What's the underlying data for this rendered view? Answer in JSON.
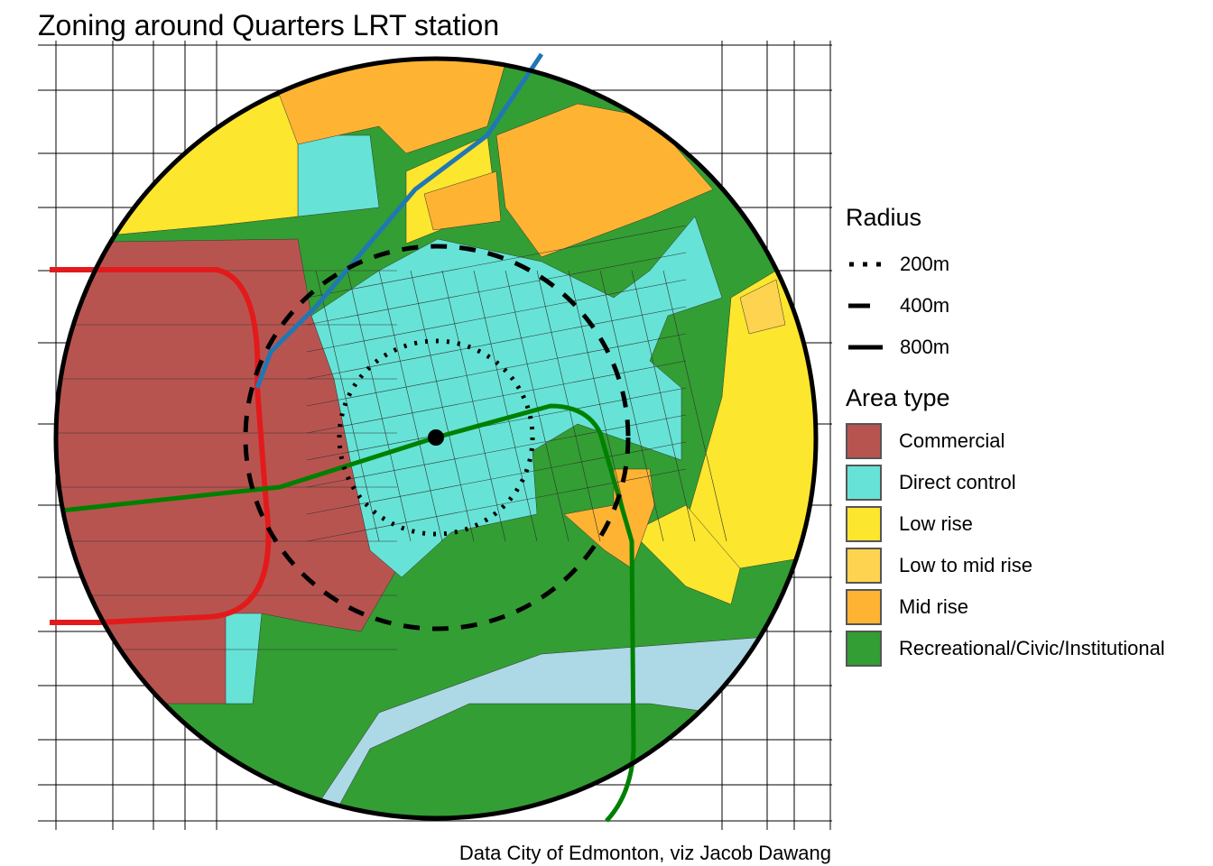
{
  "title": "Zoning around Quarters LRT station",
  "caption": "Data City of Edmonton, viz Jacob Dawang",
  "legend": {
    "radius_title": "Radius",
    "radius_items": [
      {
        "label": "200m",
        "style": "dotted"
      },
      {
        "label": "400m",
        "style": "dashed"
      },
      {
        "label": "800m",
        "style": "solid"
      }
    ],
    "area_title": "Area type",
    "area_items": [
      {
        "label": "Commercial",
        "color": "#b85450"
      },
      {
        "label": "Direct control",
        "color": "#66e3d6"
      },
      {
        "label": "Low rise",
        "color": "#fde62e"
      },
      {
        "label": "Low to mid rise",
        "color": "#fdd34f"
      },
      {
        "label": "Mid rise",
        "color": "#feb432"
      },
      {
        "label": "Recreational/Civic/Institutional",
        "color": "#339e33"
      }
    ]
  },
  "map": {
    "river_color": "#add8e6",
    "lrt_lines": [
      {
        "color": "#e31a1c"
      },
      {
        "color": "#1f78b4"
      },
      {
        "color": "#008000"
      }
    ],
    "station_marker": "filled-circle"
  }
}
